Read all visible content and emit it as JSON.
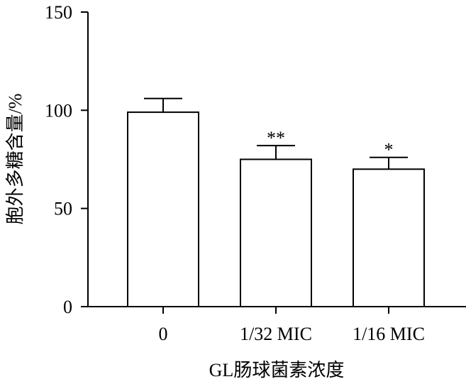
{
  "chart_data": {
    "type": "bar",
    "title": "",
    "xlabel": "GL肠球菌素浓度",
    "ylabel": "胞外多糖含量/%",
    "categories": [
      "0",
      "1/32 MIC",
      "1/16 MIC"
    ],
    "values": [
      99,
      75,
      70
    ],
    "error_upper": [
      106,
      82,
      76
    ],
    "significance": [
      "",
      "**",
      "*"
    ],
    "ylim": [
      0,
      150
    ],
    "yticks": [
      0,
      50,
      100,
      150
    ],
    "ytick_labels": [
      "0",
      "50",
      "100",
      "150"
    ],
    "grid": false,
    "legend": "none",
    "bar_fill": "#ffffff",
    "bar_stroke": "#000000"
  }
}
